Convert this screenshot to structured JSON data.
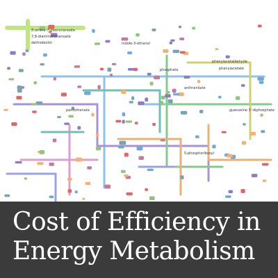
{
  "image": {
    "map_labels": [
      "8-amino-7-oxononanoate",
      "7,8-diaminononanoate",
      "dethiobiotin",
      "indole-3-ethanol",
      "phenylacetaldehyde",
      "phenylacetate",
      "phosphate",
      "anthranilate",
      "guanosine 3'-diphosphate",
      "5-phosphoribosyl",
      "pantothenate"
    ],
    "title_lines": [
      "Cost of Efficiency in",
      "Energy Metabolism"
    ]
  }
}
